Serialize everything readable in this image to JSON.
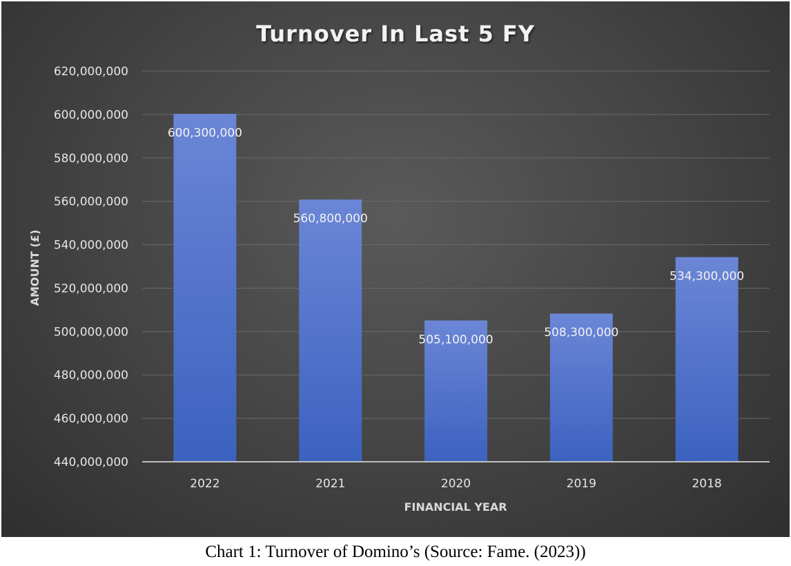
{
  "chart_data": {
    "type": "bar",
    "title": "Turnover In Last 5 FY",
    "xlabel": "FINANCIAL YEAR",
    "ylabel": "AMOUNT (£)",
    "categories": [
      "2022",
      "2021",
      "2020",
      "2019",
      "2018"
    ],
    "values": [
      600300000,
      560800000,
      505100000,
      508300000,
      534300000
    ],
    "data_labels": [
      "600,300,000",
      "560,800,000",
      "505,100,000",
      "508,300,000",
      "534,300,000"
    ],
    "ylim": [
      440000000,
      620000000
    ],
    "yticks": [
      440000000,
      460000000,
      480000000,
      500000000,
      520000000,
      540000000,
      560000000,
      580000000,
      600000000,
      620000000
    ],
    "ytick_labels": [
      "440,000,000",
      "460,000,000",
      "480,000,000",
      "500,000,000",
      "520,000,000",
      "540,000,000",
      "560,000,000",
      "580,000,000",
      "600,000,000",
      "620,000,000"
    ],
    "grid": true,
    "legend": "none",
    "colors": {
      "bar_top": "#6b86d6",
      "bar_bottom": "#3c62bf",
      "background": "#404040",
      "gridline": "#6a6a6a"
    }
  },
  "caption": "Chart 1: Turnover of Domino’s (Source: Fame. (2023))"
}
